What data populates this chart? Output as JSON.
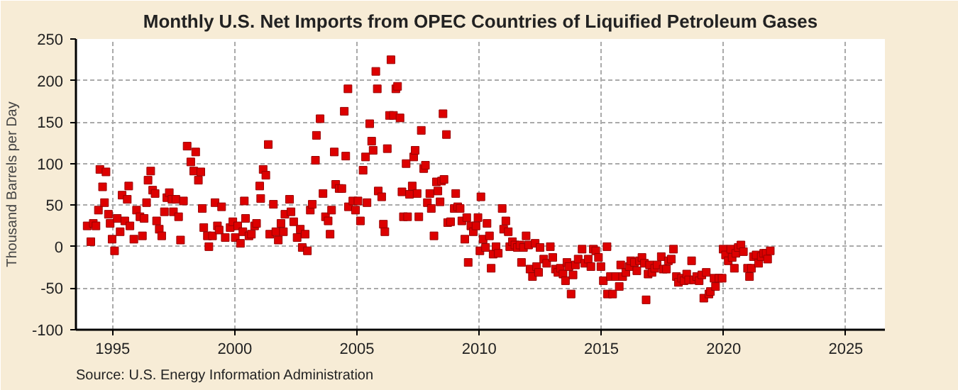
{
  "chart_data": {
    "type": "scatter",
    "title": "Monthly U.S. Net Imports from OPEC Countries of Liquified Petroleum Gases",
    "ylabel": "Thousand Barrels per Day",
    "annotations": [
      "Source: U.S. Energy Information Administration"
    ],
    "marker": "square",
    "grid": true,
    "xlim": [
      1993.5,
      2026.6
    ],
    "ylim": [
      -100,
      250
    ],
    "xticks": [
      1995,
      2000,
      2005,
      2010,
      2015,
      2020,
      2025
    ],
    "yticks": [
      -100,
      -50,
      0,
      50,
      100,
      150,
      200,
      250
    ],
    "series": [
      {
        "color": "#dd0000",
        "x": [
          1993.96,
          1994.11,
          1994.21,
          1994.32,
          1994.42,
          1994.48,
          1994.59,
          1994.67,
          1994.73,
          1994.83,
          1994.9,
          1994.98,
          1995.08,
          1995.19,
          1995.31,
          1995.39,
          1995.5,
          1995.6,
          1995.66,
          1995.71,
          1995.87,
          1995.98,
          1996.12,
          1996.22,
          1996.29,
          1996.39,
          1996.45,
          1996.56,
          1996.64,
          1996.74,
          1996.8,
          1996.91,
          1997.01,
          1997.12,
          1997.22,
          1997.32,
          1997.43,
          1997.49,
          1997.59,
          1997.7,
          1997.78,
          1997.9,
          1998.05,
          1998.2,
          1998.32,
          1998.4,
          1998.51,
          1998.61,
          1998.67,
          1998.73,
          1998.88,
          1998.94,
          1999.09,
          1999.19,
          1999.29,
          1999.36,
          1999.46,
          1999.61,
          1999.81,
          1999.92,
          2000.02,
          2000.12,
          2000.23,
          2000.33,
          2000.39,
          2000.44,
          2000.58,
          2000.68,
          2000.81,
          2000.89,
          2001.02,
          2001.06,
          2001.16,
          2001.27,
          2001.37,
          2001.43,
          2001.58,
          2001.68,
          2001.78,
          2001.89,
          2001.99,
          2002.05,
          2002.24,
          2002.3,
          2002.41,
          2002.55,
          2002.68,
          2002.76,
          2002.88,
          2002.97,
          2003.09,
          2003.17,
          2003.3,
          2003.34,
          2003.49,
          2003.61,
          2003.71,
          2003.82,
          2003.9,
          2003.96,
          2004.07,
          2004.13,
          2004.27,
          2004.38,
          2004.48,
          2004.54,
          2004.63,
          2004.65,
          2004.83,
          2004.94,
          2005.04,
          2005.14,
          2005.25,
          2005.35,
          2005.41,
          2005.52,
          2005.6,
          2005.66,
          2005.77,
          2005.83,
          2005.87,
          2006.01,
          2006.08,
          2006.14,
          2006.24,
          2006.33,
          2006.39,
          2006.49,
          2006.59,
          2006.66,
          2006.76,
          2006.84,
          2006.9,
          2007.01,
          2007.07,
          2007.15,
          2007.26,
          2007.32,
          2007.38,
          2007.46,
          2007.53,
          2007.63,
          2007.73,
          2007.8,
          2007.88,
          2007.98,
          2008.04,
          2008.15,
          2008.25,
          2008.31,
          2008.4,
          2008.46,
          2008.52,
          2008.56,
          2008.66,
          2008.71,
          2008.83,
          2008.98,
          2009.04,
          2009.12,
          2009.22,
          2009.29,
          2009.41,
          2009.49,
          2009.55,
          2009.66,
          2009.76,
          2009.87,
          2009.95,
          2010.03,
          2010.07,
          2010.16,
          2010.26,
          2010.32,
          2010.42,
          2010.49,
          2010.57,
          2010.69,
          2010.78,
          2010.94,
          2011.0,
          2011.09,
          2011.19,
          2011.25,
          2011.36,
          2011.46,
          2011.56,
          2011.67,
          2011.73,
          2011.81,
          2011.92,
          2012.02,
          2012.08,
          2012.18,
          2012.29,
          2012.35,
          2012.43,
          2012.49,
          2012.64,
          2012.76,
          2012.91,
          2013.01,
          2013.12,
          2013.22,
          2013.32,
          2013.43,
          2013.53,
          2013.59,
          2013.67,
          2013.76,
          2013.84,
          2013.94,
          2014.05,
          2014.21,
          2014.32,
          2014.46,
          2014.57,
          2014.67,
          2014.77,
          2014.88,
          2014.98,
          2015.08,
          2015.23,
          2015.25,
          2015.37,
          2015.46,
          2015.58,
          2015.73,
          2015.79,
          2015.87,
          2016.0,
          2016.14,
          2016.2,
          2016.35,
          2016.45,
          2016.56,
          2016.66,
          2016.76,
          2016.83,
          2016.91,
          2016.97,
          2017.07,
          2017.18,
          2017.28,
          2017.45,
          2017.53,
          2017.66,
          2017.74,
          2017.86,
          2017.95,
          2018.07,
          2018.15,
          2018.28,
          2018.38,
          2018.49,
          2018.57,
          2018.69,
          2018.78,
          2018.9,
          2019.0,
          2019.11,
          2019.19,
          2019.29,
          2019.4,
          2019.46,
          2019.61,
          2019.67,
          2019.81,
          2019.94,
          2019.98,
          2020.08,
          2020.19,
          2020.29,
          2020.35,
          2020.44,
          2020.5,
          2020.6,
          2020.71,
          2020.81,
          2020.98,
          2021.06,
          2021.14,
          2021.22,
          2021.33,
          2021.43,
          2021.54,
          2021.64,
          2021.74,
          2021.8,
          2021.91
        ],
        "values": [
          25,
          6,
          28,
          25,
          44,
          93,
          72,
          53,
          90,
          39,
          28,
          9,
          -5,
          34,
          18,
          62,
          31,
          57,
          73,
          25,
          9,
          44,
          36,
          13,
          34,
          53,
          80,
          91,
          68,
          64,
          31,
          21,
          13,
          42,
          59,
          65,
          57,
          42,
          57,
          36,
          8,
          55,
          121,
          102,
          91,
          114,
          80,
          90,
          46,
          23,
          13,
          0,
          13,
          53,
          25,
          20,
          48,
          11,
          23,
          30,
          11,
          25,
          4,
          18,
          55,
          34,
          13,
          15,
          25,
          28,
          73,
          58,
          93,
          86,
          123,
          15,
          51,
          18,
          8,
          28,
          18,
          39,
          57,
          42,
          30,
          11,
          21,
          -1,
          15,
          -5,
          44,
          51,
          104,
          134,
          154,
          64,
          36,
          31,
          15,
          44,
          114,
          75,
          70,
          70,
          163,
          109,
          190,
          48,
          55,
          44,
          55,
          31,
          92,
          108,
          53,
          148,
          127,
          116,
          211,
          190,
          67,
          60,
          27,
          18,
          118,
          158,
          225,
          158,
          190,
          193,
          155,
          66,
          36,
          100,
          36,
          63,
          73,
          108,
          116,
          64,
          36,
          140,
          94,
          98,
          53,
          64,
          46,
          13,
          78,
          67,
          54,
          79,
          160,
          81,
          135,
          29,
          30,
          46,
          64,
          48,
          46,
          31,
          9,
          35,
          -19,
          25,
          18,
          25,
          35,
          -5,
          60,
          9,
          -1,
          28,
          13,
          -26,
          -9,
          0,
          -8,
          46,
          21,
          31,
          18,
          0,
          6,
          2,
          -1,
          2,
          -19,
          -1,
          13,
          2,
          -27,
          -36,
          4,
          -24,
          -31,
          -1,
          -15,
          -20,
          0,
          -13,
          -27,
          -31,
          -26,
          -33,
          -41,
          -19,
          -24,
          -57,
          -34,
          -22,
          -15,
          -3,
          -20,
          -15,
          -24,
          -3,
          -5,
          -13,
          -24,
          -41,
          0,
          -57,
          -36,
          -57,
          -36,
          -48,
          -22,
          -36,
          -31,
          -24,
          -17,
          -19,
          -29,
          -17,
          -13,
          -20,
          -64,
          -33,
          -22,
          -31,
          -26,
          -22,
          -12,
          -27,
          -27,
          -17,
          -15,
          -3,
          -36,
          -43,
          -38,
          -41,
          -33,
          -40,
          -17,
          -40,
          -36,
          -41,
          -34,
          -62,
          -31,
          -57,
          -54,
          -38,
          -48,
          -38,
          -38,
          -3,
          -10,
          -17,
          -3,
          -13,
          -26,
          -8,
          -1,
          2,
          -6,
          -26,
          -36,
          -26,
          -12,
          -10,
          -20,
          -12,
          -8,
          -8,
          -15,
          -5
        ]
      }
    ]
  }
}
